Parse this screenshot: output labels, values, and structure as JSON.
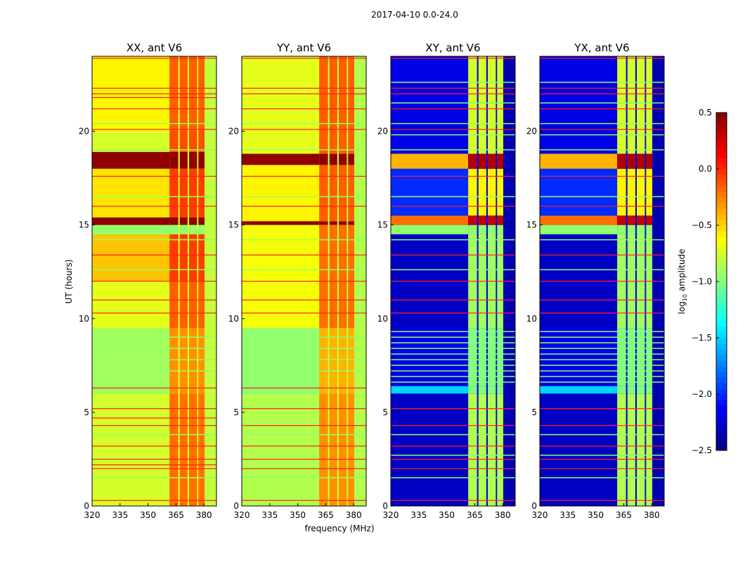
{
  "chart_data": {
    "type": "heatmap",
    "title": "2017-04-10 0.0-24.0",
    "xlabel": "frequency (MHz)",
    "ylabel": "UT (hours)",
    "xlim": [
      320,
      386.7
    ],
    "ylim": [
      0,
      24
    ],
    "xticks": [
      "320",
      "335",
      "350",
      "365",
      "380"
    ],
    "xtick_values": [
      320,
      335,
      350,
      365,
      380
    ],
    "yticks": [
      "0",
      "5",
      "10",
      "15",
      "20"
    ],
    "ytick_values": [
      0,
      5,
      10,
      15,
      20
    ],
    "colorbar": {
      "label": "log10 amplitude",
      "label_main": "log",
      "label_sub": "10",
      "label_rest": " amplitude",
      "colormap": "jet",
      "range": [
        -2.5,
        0.5
      ],
      "ticks": [
        "0.5",
        "0.0",
        "−0.5",
        "−1.0",
        "−1.5",
        "−2.0",
        "−2.5"
      ],
      "tick_values": [
        0.5,
        0.0,
        -0.5,
        -1.0,
        -1.5,
        -2.0,
        -2.5
      ]
    },
    "flag_color": "#ff2020",
    "subbands_mhz": [
      [
        361.5,
        366.2
      ],
      [
        367,
        371.2
      ],
      [
        372,
        376.3
      ],
      [
        377,
        380.3
      ]
    ],
    "panels": [
      {
        "title": "XX, ant V6",
        "gap_value": -0.7,
        "edge_value": -0.8,
        "segments": [
          [
            0,
            6,
            -0.75,
            -0.2
          ],
          [
            6,
            9.5,
            -0.9,
            -0.3
          ],
          [
            9.5,
            12,
            -0.7,
            -0.15
          ],
          [
            12,
            14.5,
            -0.45,
            -0.05
          ],
          [
            14.5,
            15,
            -0.95,
            -0.95
          ],
          [
            15,
            15.4,
            0.45,
            0.45
          ],
          [
            15.4,
            18,
            -0.55,
            -0.05
          ],
          [
            18,
            18.9,
            0.45,
            0.45
          ],
          [
            18.9,
            20,
            -0.75,
            -0.1
          ],
          [
            20,
            24,
            -0.6,
            -0.15
          ]
        ],
        "flag_times": [
          0.3,
          2.0,
          2.2,
          2.5,
          3.2,
          4.3,
          4.7,
          5.2,
          6.3,
          10.3,
          11.0,
          12.0,
          13.4,
          16.0,
          17.6,
          20.1,
          21.2,
          21.8,
          22.0,
          22.3,
          23.9
        ],
        "highlight_times": [
          1.5,
          3.8,
          7.2,
          7.8,
          8.4,
          9.0,
          12.6,
          14.2,
          16.5,
          19.0,
          20.4
        ]
      },
      {
        "title": "YY, ant V6",
        "gap_value": -0.8,
        "edge_value": -0.85,
        "segments": [
          [
            0,
            6,
            -0.85,
            -0.3
          ],
          [
            6,
            9.5,
            -0.95,
            -0.4
          ],
          [
            9.5,
            15,
            -0.65,
            -0.2
          ],
          [
            15,
            15.2,
            0.45,
            0.45
          ],
          [
            15.2,
            18.2,
            -0.6,
            -0.15
          ],
          [
            18.2,
            18.8,
            0.45,
            0.45
          ],
          [
            18.8,
            24,
            -0.7,
            -0.15
          ]
        ],
        "flag_times": [
          0.3,
          2.0,
          2.5,
          3.2,
          4.3,
          5.2,
          6.3,
          10.3,
          11.0,
          12.0,
          13.4,
          16.0,
          17.6,
          20.1,
          21.2,
          22.0,
          22.3,
          23.9
        ],
        "highlight_times": [
          1.5,
          3.8,
          7.2,
          7.8,
          8.4,
          9.0,
          12.6,
          14.2,
          16.5,
          19.0,
          20.4
        ]
      },
      {
        "title": "XY, ant V6",
        "gap_value": -2.2,
        "edge_value": -2.35,
        "segments": [
          [
            0,
            6,
            -2.3,
            -0.85
          ],
          [
            6,
            6.4,
            -1.5,
            -1.0
          ],
          [
            6.4,
            9.5,
            -2.2,
            -1.0
          ],
          [
            9.5,
            14.5,
            -2.3,
            -0.9
          ],
          [
            14.5,
            15,
            -0.95,
            -0.95
          ],
          [
            15,
            15.5,
            -0.2,
            0.3
          ],
          [
            15.5,
            18,
            -2.0,
            -0.6
          ],
          [
            18,
            18.8,
            -0.4,
            0.35
          ],
          [
            18.8,
            24,
            -2.2,
            -0.75
          ]
        ],
        "flag_times": [
          0.3,
          2.0,
          2.5,
          3.2,
          4.3,
          5.2,
          10.3,
          11.0,
          12.0,
          13.4,
          16.0,
          17.6,
          20.1,
          21.2,
          22.0,
          22.3,
          23.9
        ],
        "highlight_times": [
          1.5,
          2.7,
          3.8,
          6.6,
          6.9,
          7.2,
          7.5,
          7.8,
          8.1,
          8.4,
          8.7,
          9.0,
          9.3,
          12.6,
          14.2,
          16.5,
          19.0,
          19.8,
          20.4,
          21.5,
          22.6
        ]
      },
      {
        "title": "YX, ant V6",
        "gap_value": -2.2,
        "edge_value": -2.35,
        "segments": [
          [
            0,
            6,
            -2.3,
            -0.85
          ],
          [
            6,
            6.4,
            -1.5,
            -1.0
          ],
          [
            6.4,
            9.5,
            -2.2,
            -1.0
          ],
          [
            9.5,
            14.5,
            -2.3,
            -0.9
          ],
          [
            14.5,
            15,
            -0.95,
            -0.95
          ],
          [
            15,
            15.5,
            -0.2,
            0.3
          ],
          [
            15.5,
            18,
            -2.0,
            -0.6
          ],
          [
            18,
            18.8,
            -0.4,
            0.35
          ],
          [
            18.8,
            24,
            -2.2,
            -0.75
          ]
        ],
        "flag_times": [
          0.3,
          2.0,
          2.5,
          3.2,
          4.3,
          5.2,
          10.3,
          11.0,
          12.0,
          13.4,
          16.0,
          17.6,
          20.1,
          21.2,
          22.0,
          22.3,
          23.9
        ],
        "highlight_times": [
          1.5,
          2.7,
          3.8,
          6.6,
          6.9,
          7.2,
          7.5,
          7.8,
          8.1,
          8.4,
          8.7,
          9.0,
          9.3,
          12.6,
          14.2,
          16.5,
          19.0,
          19.8,
          20.4,
          21.5,
          22.6
        ]
      }
    ]
  }
}
